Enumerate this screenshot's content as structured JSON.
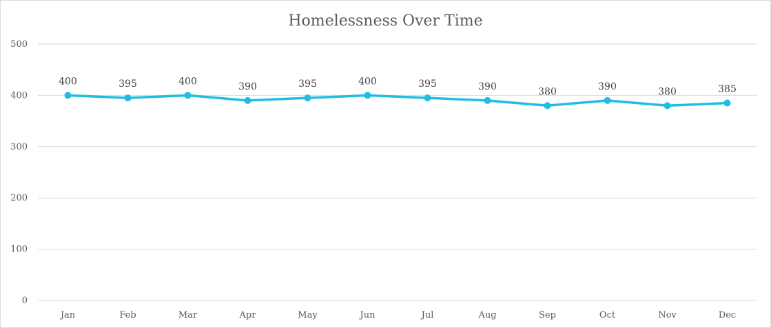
{
  "chart_data": {
    "type": "line",
    "title": "Homelessness Over Time",
    "xlabel": "",
    "ylabel": "",
    "categories": [
      "Jan",
      "Feb",
      "Mar",
      "Apr",
      "May",
      "Jun",
      "Jul",
      "Aug",
      "Sep",
      "Oct",
      "Nov",
      "Dec"
    ],
    "series": [
      {
        "values": [
          400,
          395,
          400,
          390,
          395,
          400,
          395,
          390,
          380,
          390,
          380,
          385
        ]
      }
    ],
    "ylim": [
      0,
      500
    ],
    "yticks": [
      "0",
      "100",
      "200",
      "300",
      "400",
      "500"
    ],
    "grid": true,
    "legend": "none",
    "data_labels": true,
    "colors": {
      "line": "#1fbde6",
      "grid": "#d9d9d9",
      "text": "#595959"
    }
  }
}
